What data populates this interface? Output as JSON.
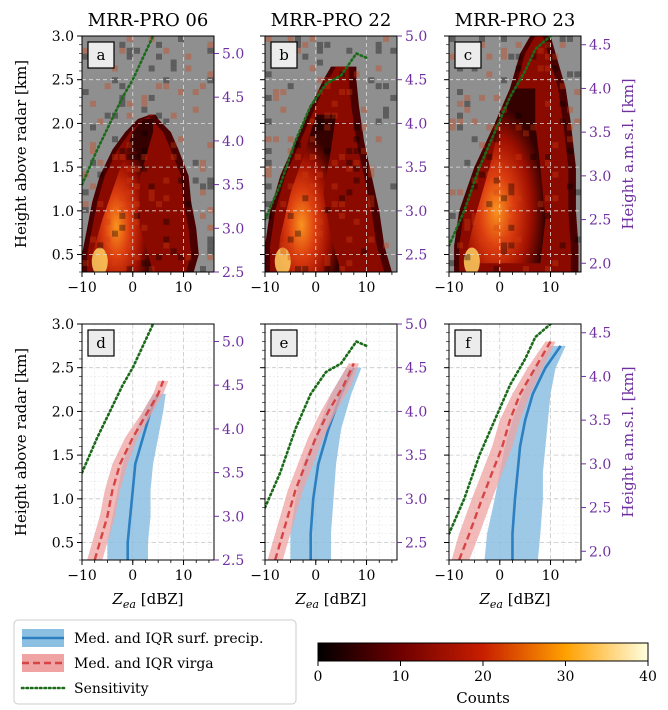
{
  "figure": {
    "colors": {
      "hist_background": "#8f8f8f",
      "surf_line": "#2e7fbf",
      "surf_band": "#8cc0e3",
      "virga_line": "#d64545",
      "virga_band": "#efa3a3",
      "sensitivity": "#1b6b1b",
      "secondary_axis": "#7030a0",
      "grid": "#c8c8c8"
    }
  },
  "chart_data": [
    {
      "type": "heatmap",
      "panel_letter": "a",
      "column_title": "MRR-PRO 06",
      "xlim": [
        -10,
        16
      ],
      "x_ticks": [
        -10,
        0,
        10
      ],
      "x_ticklabels": [
        "−10",
        "0",
        "10"
      ],
      "ylim": [
        0.3,
        3.0
      ],
      "ylabel": "Height above radar [km]",
      "y_ticks": [
        0.5,
        1.0,
        1.5,
        2.0,
        2.5,
        3.0
      ],
      "y_ticklabels": [
        "0.5",
        "1.0",
        "1.5",
        "2.0",
        "2.5",
        "3.0"
      ],
      "y2_ticks": [
        2.5,
        3.0,
        3.5,
        4.0,
        4.5,
        5.0
      ],
      "y2_ticklabels": [
        "2.5",
        "3.0",
        "3.5",
        "4.0",
        "4.5",
        "5.0"
      ],
      "y2_offset": 2.2,
      "y2label": "",
      "envelope": [
        [
          0.3,
          -10,
          12
        ],
        [
          0.5,
          -10,
          13
        ],
        [
          0.8,
          -9,
          12.5
        ],
        [
          1.1,
          -8,
          11.5
        ],
        [
          1.4,
          -6.5,
          11
        ],
        [
          1.7,
          -4,
          9
        ],
        [
          1.9,
          -1.5,
          7.5
        ],
        [
          2.05,
          1,
          5
        ],
        [
          2.1,
          3.5,
          4.5
        ]
      ],
      "core": [
        [
          0.3,
          -8,
          4
        ],
        [
          0.5,
          -8,
          3
        ],
        [
          0.9,
          -6,
          1
        ],
        [
          1.4,
          -3,
          1.5
        ],
        [
          1.9,
          0,
          4
        ],
        [
          2.05,
          2,
          4
        ]
      ],
      "sensitivity": [
        [
          -10,
          1.3
        ],
        [
          -7,
          1.7
        ],
        [
          -4.5,
          2.0
        ],
        [
          -2,
          2.3
        ],
        [
          0,
          2.5
        ],
        [
          2,
          2.75
        ],
        [
          4,
          3.0
        ]
      ]
    },
    {
      "type": "heatmap",
      "panel_letter": "b",
      "column_title": "MRR-PRO 22",
      "xlim": [
        -10,
        16
      ],
      "x_ticks": [
        -10,
        0,
        10
      ],
      "x_ticklabels": [
        "−10",
        "0",
        "10"
      ],
      "ylim": [
        0.3,
        3.0
      ],
      "ylabel": "",
      "y_ticks": [
        0.5,
        1.0,
        1.5,
        2.0,
        2.5,
        3.0
      ],
      "y_ticklabels": [
        "",
        "",
        "",
        "",
        "",
        ""
      ],
      "y2_ticks": [
        2.5,
        3.0,
        3.5,
        4.0,
        4.5,
        5.0
      ],
      "y2_ticklabels": [
        "2.5",
        "3.0",
        "3.5",
        "4.0",
        "4.5",
        "5.0"
      ],
      "y2_offset": 2.0,
      "y2label": "",
      "envelope": [
        [
          0.3,
          -10,
          15
        ],
        [
          0.6,
          -10,
          13.5
        ],
        [
          1.0,
          -9,
          12.5
        ],
        [
          1.4,
          -7,
          11
        ],
        [
          1.8,
          -4,
          9.5
        ],
        [
          2.2,
          -1,
          8.5
        ],
        [
          2.5,
          1.5,
          8
        ],
        [
          2.65,
          3,
          8
        ]
      ],
      "core": [
        [
          0.3,
          -8,
          5
        ],
        [
          0.7,
          -7,
          3
        ],
        [
          1.2,
          -5,
          1.5
        ],
        [
          1.7,
          -2,
          3
        ],
        [
          2.1,
          0,
          4
        ]
      ],
      "sensitivity": [
        [
          -10,
          0.9
        ],
        [
          -7,
          1.3
        ],
        [
          -4,
          1.8
        ],
        [
          -1,
          2.2
        ],
        [
          2,
          2.45
        ],
        [
          5,
          2.55
        ],
        [
          8,
          2.8
        ],
        [
          10,
          2.75
        ]
      ]
    },
    {
      "type": "heatmap",
      "panel_letter": "c",
      "column_title": "MRR-PRO 23",
      "xlim": [
        -10,
        16
      ],
      "x_ticks": [
        -10,
        0,
        10
      ],
      "x_ticklabels": [
        "−10",
        "0",
        "10"
      ],
      "ylim": [
        0.3,
        3.0
      ],
      "ylabel": "",
      "y_ticks": [
        0.5,
        1.0,
        1.5,
        2.0,
        2.5,
        3.0
      ],
      "y_ticklabels": [
        "",
        "",
        "",
        "",
        "",
        ""
      ],
      "y2_ticks": [
        2.0,
        2.5,
        3.0,
        3.5,
        4.0,
        4.5
      ],
      "y2_ticklabels": [
        "2.0",
        "2.5",
        "3.0",
        "3.5",
        "4.0",
        "4.5"
      ],
      "y2_offset": 1.6,
      "y2label": "Height a.m.s.l. [km]",
      "envelope": [
        [
          0.3,
          -9,
          15.5
        ],
        [
          0.6,
          -9,
          15.5
        ],
        [
          1.0,
          -8,
          15
        ],
        [
          1.5,
          -5,
          15
        ],
        [
          2.0,
          -1,
          14
        ],
        [
          2.4,
          2,
          13
        ],
        [
          2.8,
          4,
          11
        ],
        [
          3.0,
          6,
          10
        ]
      ],
      "core": [
        [
          0.4,
          -7,
          8
        ],
        [
          0.9,
          -5,
          9
        ],
        [
          1.5,
          -2,
          8
        ],
        [
          2.0,
          0,
          7
        ],
        [
          2.4,
          3,
          7
        ]
      ],
      "sensitivity": [
        [
          -10,
          0.6
        ],
        [
          -7,
          1.0
        ],
        [
          -4,
          1.5
        ],
        [
          -1,
          1.9
        ],
        [
          2,
          2.3
        ],
        [
          5,
          2.6
        ],
        [
          7,
          2.85
        ],
        [
          10,
          3.0
        ]
      ]
    },
    {
      "type": "line",
      "panel_letter": "d",
      "column_title": "",
      "xlim": [
        -10,
        16
      ],
      "x_ticks": [
        -10,
        0,
        10
      ],
      "x_ticklabels": [
        "−10",
        "0",
        "10"
      ],
      "xlabel": "Z_ea [dBZ]",
      "ylim": [
        0.3,
        3.0
      ],
      "ylabel": "Height above radar [km]",
      "y_ticks": [
        0.5,
        1.0,
        1.5,
        2.0,
        2.5,
        3.0
      ],
      "y_ticklabels": [
        "0.5",
        "1.0",
        "1.5",
        "2.0",
        "2.5",
        "3.0"
      ],
      "y2_ticks": [
        2.5,
        3.0,
        3.5,
        4.0,
        4.5,
        5.0
      ],
      "y2_ticklabels": [
        "2.5",
        "3.0",
        "3.5",
        "4.0",
        "4.5",
        "5.0"
      ],
      "y2_offset": 2.2,
      "y2label": "",
      "series": [
        {
          "key": "surf",
          "y": [
            0.3,
            0.5,
            0.8,
            1.1,
            1.4,
            1.7,
            2.0,
            2.2
          ],
          "median": [
            -1,
            -1,
            -0.5,
            0,
            0.5,
            2,
            3.5,
            5
          ],
          "q1": [
            -5,
            -5,
            -4,
            -3,
            -2,
            0,
            2,
            4
          ],
          "q3": [
            3,
            3,
            3.5,
            3.5,
            4,
            5,
            6,
            6.5
          ]
        },
        {
          "key": "virga",
          "y": [
            0.3,
            0.5,
            0.8,
            1.1,
            1.4,
            1.7,
            2.0,
            2.2,
            2.35
          ],
          "median": [
            -7.5,
            -6.5,
            -5,
            -4,
            -2.5,
            0,
            3,
            5,
            6
          ],
          "q1": [
            -9,
            -8,
            -6.5,
            -5.5,
            -4,
            -1.5,
            2,
            4,
            5
          ],
          "q3": [
            -6,
            -5,
            -3.5,
            -2.5,
            -1,
            1,
            4,
            6,
            7
          ]
        }
      ],
      "sensitivity": [
        [
          -10,
          1.3
        ],
        [
          -7,
          1.7
        ],
        [
          -4.5,
          2.0
        ],
        [
          -2,
          2.3
        ],
        [
          0,
          2.5
        ],
        [
          2,
          2.75
        ],
        [
          4,
          3.0
        ]
      ]
    },
    {
      "type": "line",
      "panel_letter": "e",
      "column_title": "",
      "xlim": [
        -10,
        16
      ],
      "x_ticks": [
        -10,
        0,
        10
      ],
      "x_ticklabels": [
        "−10",
        "0",
        "10"
      ],
      "xlabel": "Z_ea [dBZ]",
      "ylim": [
        0.3,
        3.0
      ],
      "ylabel": "",
      "y_ticks": [
        0.5,
        1.0,
        1.5,
        2.0,
        2.5,
        3.0
      ],
      "y_ticklabels": [
        "",
        "",
        "",
        "",
        "",
        ""
      ],
      "y2_ticks": [
        2.5,
        3.0,
        3.5,
        4.0,
        4.5,
        5.0
      ],
      "y2_ticklabels": [
        "2.5",
        "3.0",
        "3.5",
        "4.0",
        "4.5",
        "5.0"
      ],
      "y2_offset": 2.0,
      "y2label": "",
      "series": [
        {
          "key": "surf",
          "y": [
            0.3,
            0.6,
            1.0,
            1.4,
            1.8,
            2.2,
            2.5
          ],
          "median": [
            -1,
            -1,
            -0.5,
            0.5,
            2.5,
            5,
            7.5
          ],
          "q1": [
            -5,
            -5,
            -4,
            -2.5,
            0.5,
            3,
            6
          ],
          "q3": [
            3,
            3,
            3.5,
            4,
            5,
            7,
            9
          ]
        },
        {
          "key": "virga",
          "y": [
            0.3,
            0.5,
            0.8,
            1.1,
            1.4,
            1.7,
            2.0,
            2.3,
            2.55
          ],
          "median": [
            -8,
            -7,
            -5.5,
            -4,
            -2,
            0,
            2.5,
            5.5,
            7.5
          ],
          "q1": [
            -9.5,
            -8.5,
            -7,
            -5.5,
            -3.5,
            -1.5,
            1,
            4,
            6.5
          ],
          "q3": [
            -6.5,
            -5.5,
            -4,
            -2.5,
            -0.5,
            1.5,
            4,
            7,
            8.5
          ]
        }
      ],
      "sensitivity": [
        [
          -10,
          0.9
        ],
        [
          -7,
          1.3
        ],
        [
          -4,
          1.8
        ],
        [
          -1,
          2.2
        ],
        [
          2,
          2.45
        ],
        [
          5,
          2.55
        ],
        [
          8,
          2.8
        ],
        [
          10,
          2.75
        ]
      ]
    },
    {
      "type": "line",
      "panel_letter": "f",
      "column_title": "",
      "xlim": [
        -10,
        16
      ],
      "x_ticks": [
        -10,
        0,
        10
      ],
      "x_ticklabels": [
        "−10",
        "0",
        "10"
      ],
      "xlabel": "Z_ea [dBZ]",
      "ylim": [
        0.3,
        3.0
      ],
      "ylabel": "",
      "y_ticks": [
        0.5,
        1.0,
        1.5,
        2.0,
        2.5,
        3.0
      ],
      "y_ticklabels": [
        "",
        "",
        "",
        "",
        "",
        ""
      ],
      "y2_ticks": [
        2.0,
        2.5,
        3.0,
        3.5,
        4.0,
        4.5
      ],
      "y2_ticklabels": [
        "2.0",
        "2.5",
        "3.0",
        "3.5",
        "4.0",
        "4.5"
      ],
      "y2_offset": 1.6,
      "y2label": "Height a.m.s.l. [km]",
      "series": [
        {
          "key": "surf",
          "y": [
            0.3,
            0.6,
            1.0,
            1.3,
            1.6,
            1.9,
            2.2,
            2.5,
            2.75
          ],
          "median": [
            2.5,
            2.5,
            3,
            3.5,
            4,
            5,
            6.5,
            9,
            12
          ],
          "q1": [
            -3,
            -2.5,
            -1,
            0,
            1,
            2.5,
            4.5,
            7,
            10
          ],
          "q3": [
            7.5,
            8,
            8.5,
            8.5,
            9,
            9.5,
            10,
            11,
            13
          ]
        },
        {
          "key": "virga",
          "y": [
            0.3,
            0.6,
            1.0,
            1.3,
            1.6,
            1.9,
            2.2,
            2.5,
            2.8
          ],
          "median": [
            -8,
            -6,
            -3.5,
            -1.5,
            0.5,
            2,
            4,
            7,
            10
          ],
          "q1": [
            -9.5,
            -8,
            -5.5,
            -3.5,
            -1.5,
            0,
            2.5,
            5.5,
            9
          ],
          "q3": [
            -6,
            -4,
            -1.5,
            0.5,
            2.5,
            4,
            6,
            8.5,
            11
          ]
        }
      ],
      "sensitivity": [
        [
          -10,
          0.6
        ],
        [
          -7,
          1.0
        ],
        [
          -4,
          1.5
        ],
        [
          -1,
          1.9
        ],
        [
          2,
          2.3
        ],
        [
          5,
          2.6
        ],
        [
          7,
          2.85
        ],
        [
          10,
          3.0
        ]
      ]
    }
  ],
  "legend": {
    "entries": [
      {
        "key": "surf",
        "label": "Med. and IQR surf. precip."
      },
      {
        "key": "virga",
        "label": "Med. and IQR virga"
      },
      {
        "key": "sensitivity",
        "label": "Sensitivity"
      }
    ]
  },
  "colorbar": {
    "label": "Counts",
    "min": 0,
    "max": 40,
    "ticks": [
      0,
      10,
      20,
      30,
      40
    ],
    "ticklabels": [
      "0",
      "10",
      "20",
      "30",
      "40"
    ],
    "colormap": "afmhot"
  }
}
